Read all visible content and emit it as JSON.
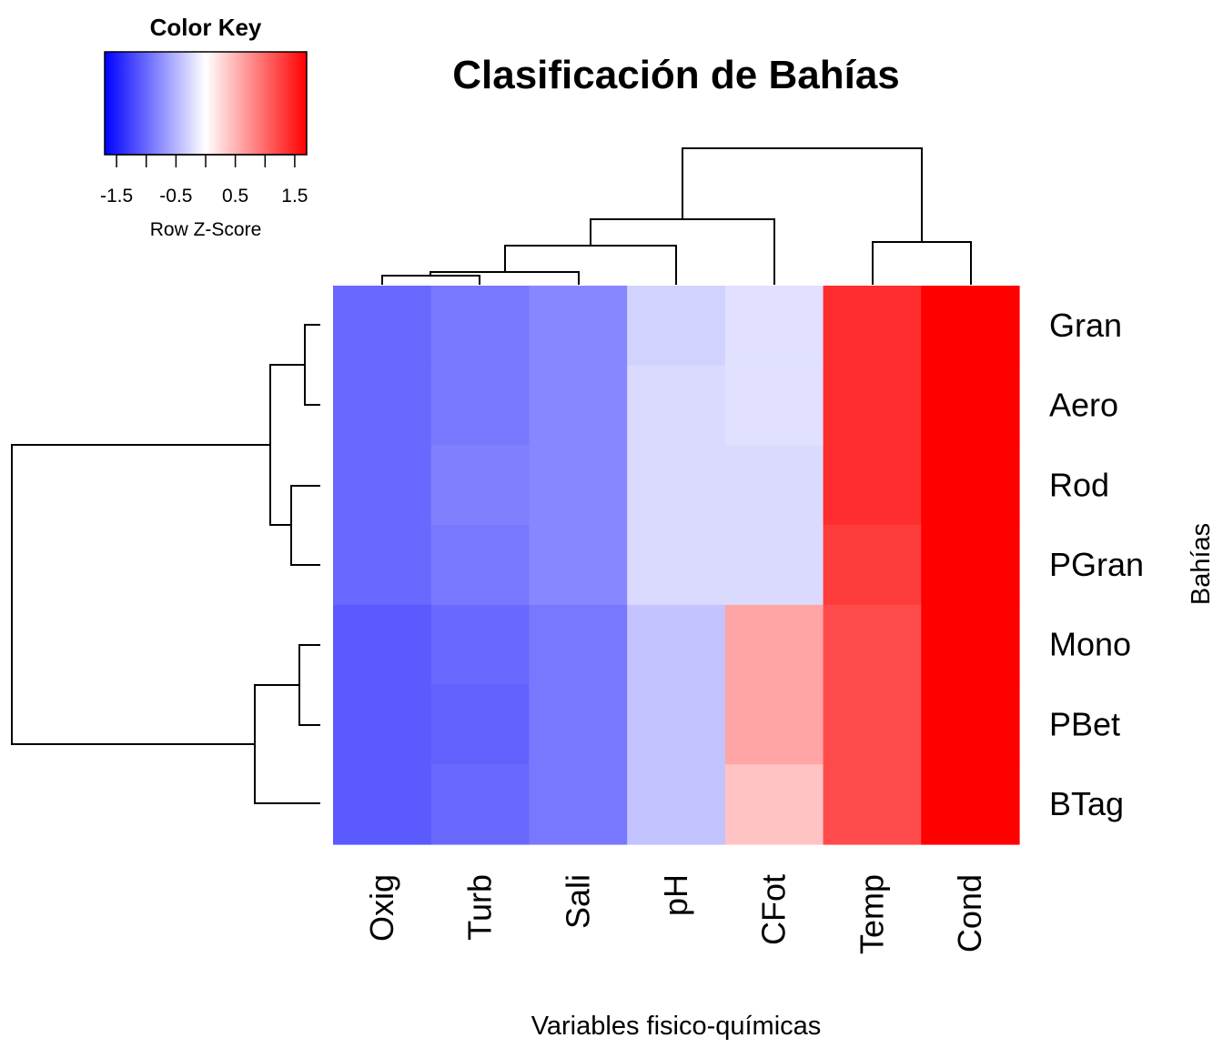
{
  "chart_data": {
    "type": "heatmap",
    "title": "Clasificación de Bahías",
    "xlabel": "Variables fisico-químicas",
    "ylabel": "Bahías",
    "columns": [
      "Oxig",
      "Turb",
      "Sali",
      "pH",
      "CFot",
      "Temp",
      "Cond"
    ],
    "rows": [
      "Gran",
      "Aero",
      "Rod",
      "PGran",
      "Mono",
      "PBet",
      "BTag"
    ],
    "values": [
      [
        -1.0,
        -0.9,
        -0.8,
        -0.3,
        -0.2,
        1.4,
        1.9
      ],
      [
        -1.0,
        -0.9,
        -0.8,
        -0.25,
        -0.2,
        1.4,
        1.9
      ],
      [
        -1.0,
        -0.85,
        -0.8,
        -0.25,
        -0.25,
        1.4,
        1.9
      ],
      [
        -1.0,
        -0.9,
        -0.8,
        -0.25,
        -0.25,
        1.3,
        1.9
      ],
      [
        -1.1,
        -1.0,
        -0.9,
        -0.4,
        0.6,
        1.2,
        1.8
      ],
      [
        -1.1,
        -1.05,
        -0.9,
        -0.4,
        0.6,
        1.2,
        1.8
      ],
      [
        -1.1,
        -1.0,
        -0.9,
        -0.4,
        0.4,
        1.2,
        1.8
      ]
    ],
    "color_key": {
      "title": "Color Key",
      "label": "Row Z-Score",
      "ticks": [
        "-1.5",
        "-0.5",
        "0.5",
        "1.5"
      ],
      "range": [
        -1.7,
        1.7
      ],
      "low_color": "#0000ff",
      "mid_color": "#ffffff",
      "high_color": "#ff0000"
    },
    "dendrograms": [
      "columns",
      "rows"
    ]
  }
}
